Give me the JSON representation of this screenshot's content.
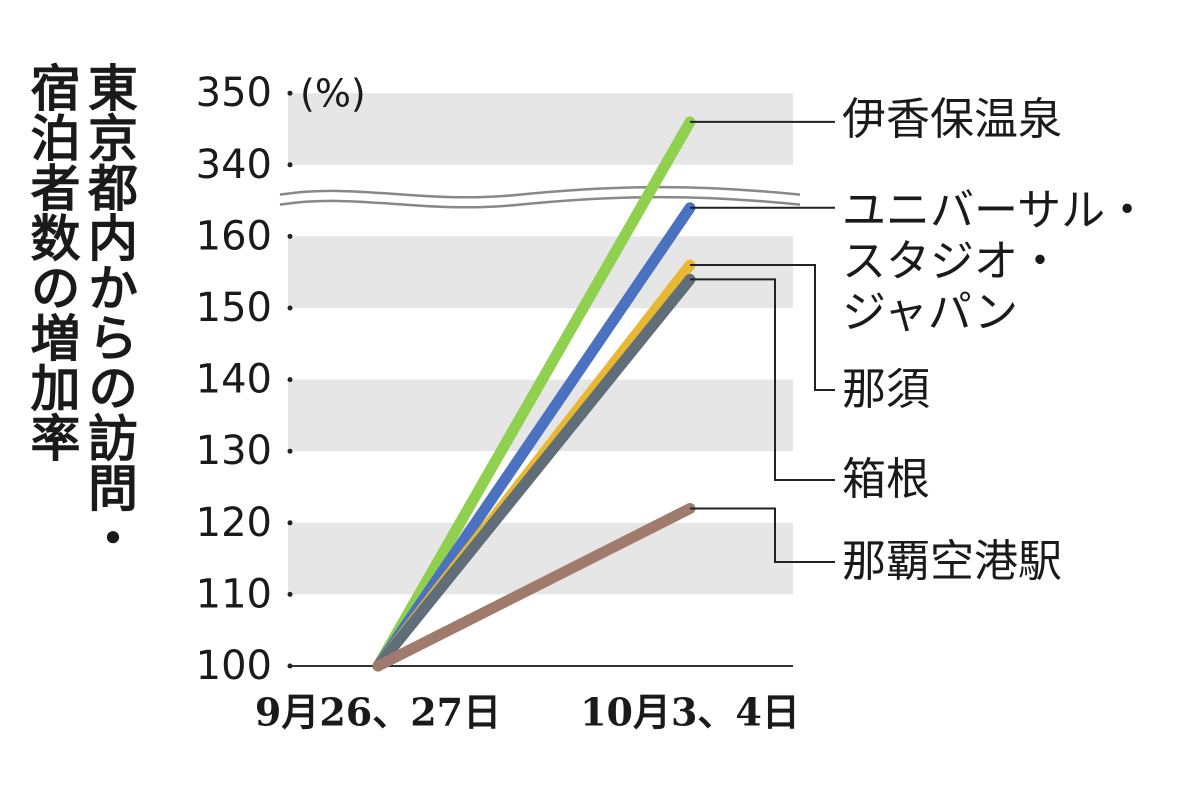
{
  "chart_data": {
    "type": "line",
    "title": "東京都内からの訪問・宿泊者数の増加率",
    "unit": "(%)",
    "categories": [
      "9月26、27日",
      "10月3、4日"
    ],
    "series": [
      {
        "name": "伊香保温泉",
        "color": "#8fd14f",
        "values": [
          100,
          346
        ]
      },
      {
        "name": "ユニバーサル・スタジオ・ジャパン",
        "color": "#4a72c0",
        "values": [
          100,
          164
        ]
      },
      {
        "name": "那須",
        "color": "#e8b832",
        "values": [
          100,
          156
        ]
      },
      {
        "name": "箱根",
        "color": "#5f6e78",
        "values": [
          100,
          154
        ]
      },
      {
        "name": "那覇空港駅",
        "color": "#a07a6c",
        "values": [
          100,
          122
        ]
      }
    ],
    "yticks": [
      100,
      110,
      120,
      130,
      140,
      150,
      160,
      340,
      350
    ],
    "grid": "bands"
  }
}
